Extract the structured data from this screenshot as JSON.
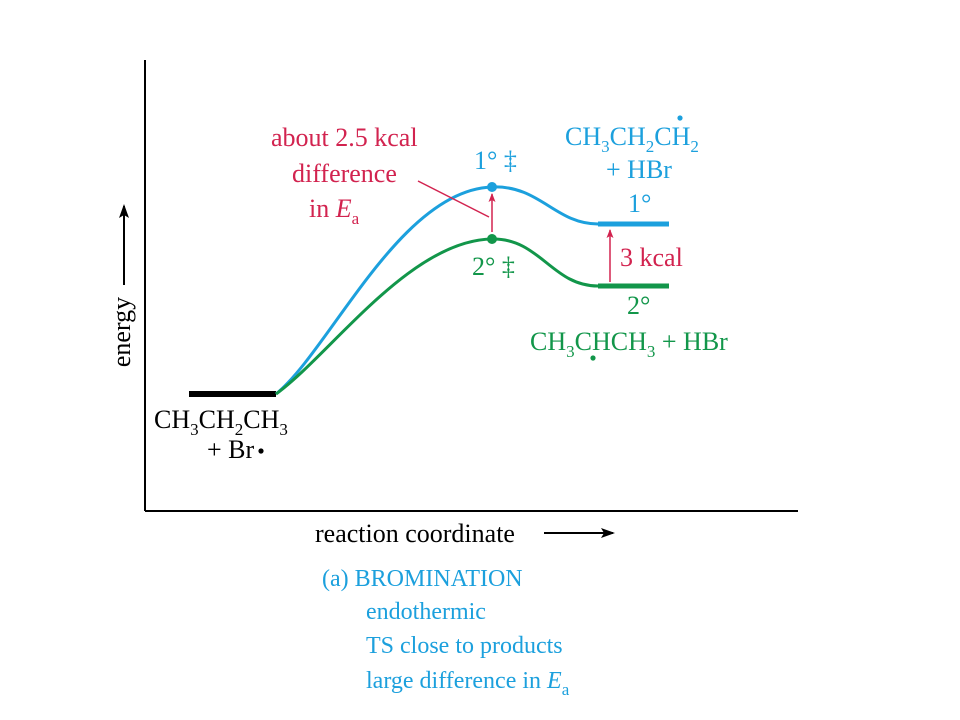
{
  "axes": {
    "y_label": "energy",
    "x_label": "reaction coordinate"
  },
  "reactants": {
    "formula": {
      "a": "CH",
      "s1": "3",
      "b": "CH",
      "s2": "2",
      "c": "CH",
      "s3": "3"
    },
    "plus_line": "+ Br"
  },
  "primary": {
    "ts_label": "1° ‡",
    "product_level_label": "1°",
    "radical_formula": {
      "a": "CH",
      "s1": "3",
      "b": "CH",
      "s2": "2",
      "c": "CH",
      "s3": "2"
    },
    "plus_hbr": "+ HBr"
  },
  "secondary": {
    "ts_label": "2° ‡",
    "product_level_label": "2°",
    "radical_formula": {
      "a": "CH",
      "s1": "3",
      "b": "CHCH",
      "s2": "3",
      "tail": " + HBr"
    }
  },
  "annotations": {
    "ea_line1": "about 2.5 kcal",
    "ea_line2": "difference",
    "ea_line3_prefix": "in ",
    "ea_symbol": "E",
    "ea_subscript": "a",
    "product_gap": "3 kcal"
  },
  "caption": {
    "title": "(a) BROMINATION",
    "line1": "endothermic",
    "line2": "TS close to products",
    "line3_prefix": "large difference in ",
    "ea_symbol": "E",
    "ea_subscript": "a"
  },
  "colors": {
    "primary_curve": "#1ca0dd",
    "secondary_curve": "#12964a",
    "annotation": "#d2234f",
    "axis": "#000000"
  }
}
